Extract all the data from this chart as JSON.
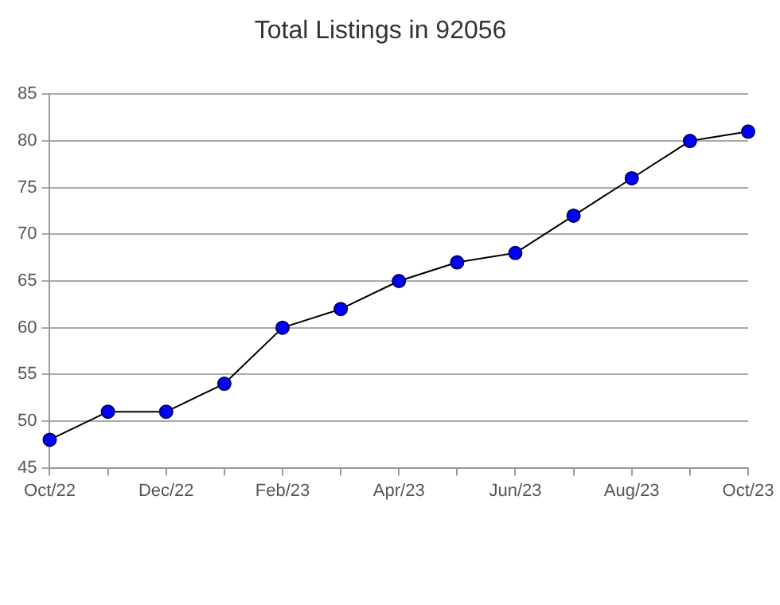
{
  "chart_data": {
    "type": "line",
    "title": "Total Listings in 92056",
    "categories": [
      "Oct/22",
      null,
      "Dec/22",
      null,
      "Feb/23",
      null,
      "Apr/23",
      null,
      "Jun/23",
      null,
      "Aug/23",
      null,
      "Oct/23"
    ],
    "series": [
      {
        "color": "#0000ff",
        "values": [
          48,
          51,
          51,
          54,
          60,
          62,
          65,
          67,
          68,
          72,
          76,
          80,
          81
        ]
      }
    ],
    "ylim": [
      45,
      85
    ],
    "yticks": [
      45,
      50,
      55,
      60,
      65,
      70,
      75,
      80,
      85
    ],
    "grid": "y",
    "legend": false,
    "marker": "circle",
    "line_style": "solid"
  }
}
